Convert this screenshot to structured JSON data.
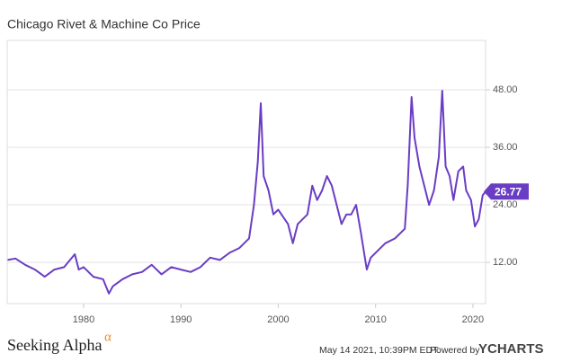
{
  "chart_data": {
    "type": "line",
    "title": "Chicago Rivet & Machine Co Price",
    "x": [
      1972.2,
      1973,
      1974,
      1975,
      1976,
      1977,
      1978,
      1979.1,
      1979.5,
      1980,
      1981,
      1982,
      1982.6,
      1983,
      1984,
      1985,
      1986,
      1987,
      1988,
      1989,
      1990,
      1991,
      1992,
      1993,
      1994,
      1995,
      1996,
      1997,
      1997.5,
      1997.9,
      1998.2,
      1998.5,
      1999,
      1999.5,
      2000,
      2001,
      2001.5,
      2002,
      2003,
      2003.5,
      2004,
      2004.5,
      2005,
      2005.5,
      2006,
      2006.5,
      2007,
      2007.5,
      2008,
      2008.5,
      2009.1,
      2009.5,
      2010,
      2011,
      2012,
      2013,
      2013.3,
      2013.7,
      2014,
      2014.5,
      2015,
      2015.5,
      2016,
      2016.5,
      2016.85,
      2017.2,
      2017.6,
      2018,
      2018.5,
      2019,
      2019.3,
      2019.8,
      2020.2,
      2020.6,
      2021,
      2021.3
    ],
    "series": [
      {
        "name": "Chicago Rivet & Machine Co Price",
        "color": "#6a3dc4",
        "values": [
          12.5,
          12.8,
          11.5,
          10.5,
          9,
          10.5,
          11,
          13.7,
          10.5,
          11,
          9,
          8.5,
          5.5,
          7,
          8.5,
          9.5,
          10,
          11.5,
          9.5,
          11,
          10.5,
          10,
          11,
          13,
          12.5,
          14,
          15,
          17,
          24,
          33,
          45.2,
          30,
          27,
          22,
          23,
          20,
          16,
          20,
          22,
          28,
          25,
          27,
          30,
          28,
          24,
          20,
          22,
          22,
          24,
          18,
          10.5,
          13,
          14,
          16,
          17,
          19,
          28,
          46.5,
          38,
          32,
          28,
          24,
          27,
          34,
          47.8,
          32,
          30,
          25,
          31,
          32,
          27,
          25,
          19.5,
          21,
          26,
          26.77
        ]
      }
    ],
    "last_value": 26.77,
    "xlim": [
      1972.15,
      2021.3
    ],
    "xticks": [
      1980,
      1990,
      2000,
      2010,
      2020
    ],
    "ylim": [
      3.4,
      58.3
    ],
    "yticks": [
      {
        "value": 12,
        "label": "12.00"
      },
      {
        "value": 24,
        "label": "24.00"
      },
      {
        "value": 36,
        "label": "36.00"
      },
      {
        "value": 48,
        "label": "48.00"
      }
    ],
    "grid": true,
    "source": "Seeking Alpha",
    "source_mark": "α",
    "timestamp": "May 14 2021, 10:39PM EDT.",
    "powered_by": "Powered by",
    "brand": "YCHARTS"
  }
}
